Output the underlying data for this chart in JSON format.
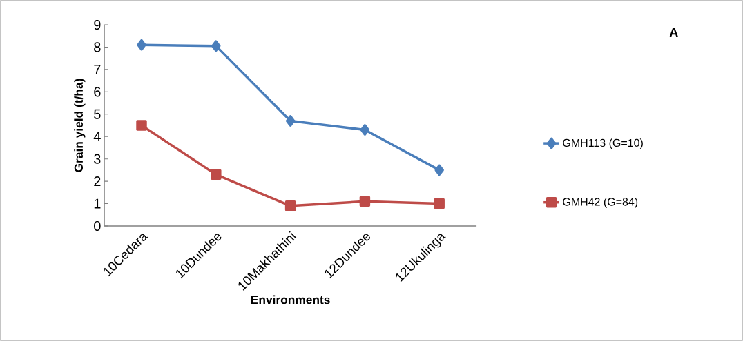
{
  "chart_data": {
    "type": "line",
    "categories": [
      "10Cedara",
      "10Dundee",
      "10Makhathini",
      "12Dundee",
      "12Ukulinga"
    ],
    "series": [
      {
        "name": "GMH113 (G=10)",
        "color": "#4a7ebb",
        "marker": "diamond",
        "values": [
          8.1,
          8.05,
          4.7,
          4.3,
          2.5
        ]
      },
      {
        "name": "GMH42 (G=84)",
        "color": "#be4b48",
        "marker": "square",
        "values": [
          4.5,
          2.3,
          0.9,
          1.1,
          1.0
        ]
      }
    ],
    "xlabel": "Environments",
    "ylabel": "Grain yield (t/ha)",
    "ylim": [
      0,
      9
    ],
    "yticks": [
      0,
      1,
      2,
      3,
      4,
      5,
      6,
      7,
      8,
      9
    ],
    "legend": "right",
    "grid": false,
    "line_style": "solid",
    "annotations": [
      "A"
    ]
  }
}
